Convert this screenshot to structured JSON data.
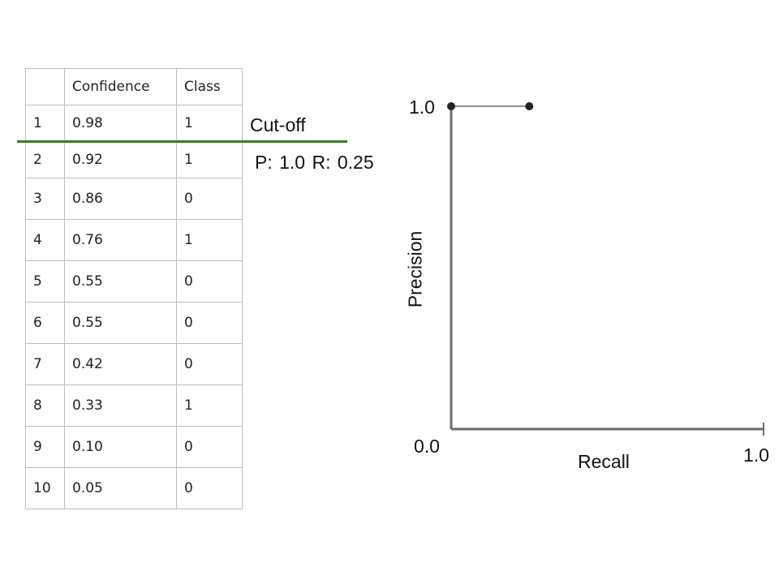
{
  "table": {
    "headers": [
      "",
      "Confidence",
      "Class"
    ],
    "rows": [
      [
        "1",
        "0.98",
        "1"
      ],
      [
        "2",
        "0.92",
        "1"
      ],
      [
        "3",
        "0.86",
        "0"
      ],
      [
        "4",
        "0.76",
        "1"
      ],
      [
        "5",
        "0.55",
        "0"
      ],
      [
        "6",
        "0.55",
        "0"
      ],
      [
        "7",
        "0.42",
        "0"
      ],
      [
        "8",
        "0.33",
        "1"
      ],
      [
        "9",
        "0.10",
        "0"
      ],
      [
        "10",
        "0.05",
        "0"
      ]
    ]
  },
  "cutoff": {
    "label": "Cut-off",
    "metrics": "P: 1.0  R: 0.25",
    "line_color": "#3f7a28"
  },
  "chart": {
    "xlabel": "Recall",
    "ylabel": "Precision",
    "origin_label": "0.0",
    "x_max_label": "1.0",
    "y_max_label": "1.0",
    "points": [
      {
        "recall": 0.0,
        "precision": 1.0
      },
      {
        "recall": 0.25,
        "precision": 1.0
      }
    ]
  }
}
